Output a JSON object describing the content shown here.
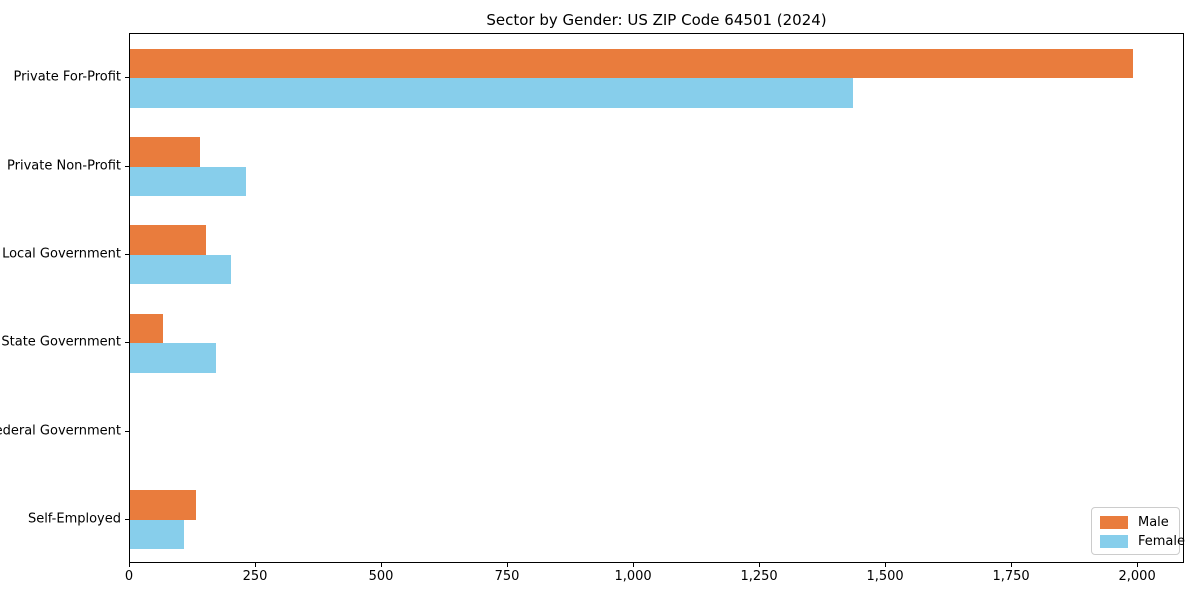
{
  "title": "Sector by Gender: US ZIP Code 64501 (2024)",
  "chart_data": {
    "type": "bar",
    "orientation": "horizontal",
    "title": "Sector by Gender: US ZIP Code 64501 (2024)",
    "categories": [
      "Private For-Profit",
      "Private Non-Profit",
      "Local Government",
      "State Government",
      "Federal Government",
      "Self-Employed"
    ],
    "series": [
      {
        "name": "Male",
        "color": "#e97c3d",
        "values": [
          1990,
          138,
          150,
          66,
          0,
          130
        ]
      },
      {
        "name": "Female",
        "color": "#87ceeb",
        "values": [
          1435,
          230,
          200,
          170,
          0,
          108
        ]
      }
    ],
    "xlim": [
      0,
      2093
    ],
    "x_ticks": [
      0,
      250,
      500,
      750,
      1000,
      1250,
      1500,
      1750,
      2000
    ],
    "x_tick_labels": [
      "0",
      "250",
      "500",
      "750",
      "1,000",
      "1,250",
      "1,500",
      "1,750",
      "2,000"
    ],
    "xlabel": "",
    "ylabel": "",
    "grid": false,
    "legend": {
      "position": "lower right",
      "entries": [
        {
          "label": "Male",
          "color": "#e97c3d"
        },
        {
          "label": "Female",
          "color": "#87ceeb"
        }
      ]
    }
  }
}
